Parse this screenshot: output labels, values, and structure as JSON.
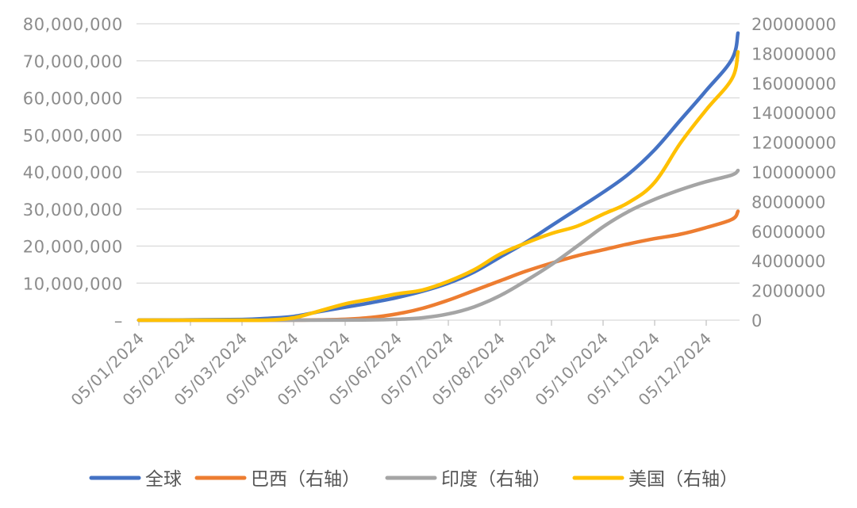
{
  "chart_data": {
    "type": "line",
    "title": "",
    "x": [
      "05/01/2024",
      "05/02/2024",
      "05/03/2024",
      "05/04/2024",
      "05/05/2024",
      "05/06/2024",
      "05/07/2024",
      "05/08/2024",
      "05/09/2024",
      "05/10/2024",
      "05/11/2024",
      "05/12/2024"
    ],
    "x_ticks": [
      "05/01/2024",
      "05/02/2024",
      "05/03/2024",
      "05/04/2024",
      "05/05/2024",
      "05/06/2024",
      "05/07/2024",
      "05/08/2024",
      "05/09/2024",
      "05/10/2024",
      "05/11/2024",
      "05/12/2024"
    ],
    "y_left": {
      "label": "",
      "lim": [
        0,
        80000000
      ],
      "ticks": [
        0,
        10000000,
        20000000,
        30000000,
        40000000,
        50000000,
        60000000,
        70000000,
        80000000
      ],
      "tick_labels": [
        "–",
        "10,000,000",
        "20,000,000",
        "30,000,000",
        "40,000,000",
        "50,000,000",
        "60,000,000",
        "70,000,000",
        "80,000,000"
      ]
    },
    "y_right": {
      "label": "",
      "lim": [
        0,
        20000000
      ],
      "ticks": [
        0,
        2000000,
        4000000,
        6000000,
        8000000,
        10000000,
        12000000,
        14000000,
        16000000,
        18000000,
        20000000
      ],
      "tick_labels": [
        "0",
        "2000000",
        "4000000",
        "6000000",
        "8000000",
        "10000000",
        "12000000",
        "14000000",
        "16000000",
        "18000000",
        "20000000"
      ]
    },
    "grid": true,
    "legend_position": "bottom",
    "series": [
      {
        "name": "全球",
        "axis": "left",
        "color": "#4472C4",
        "points": [
          [
            "05/01/2024",
            0
          ],
          [
            "05/01/2024+0.5",
            30000
          ],
          [
            "05/02/2024",
            80000
          ],
          [
            "05/03/2024",
            200000
          ],
          [
            "05/03/2024+0.5",
            500000
          ],
          [
            "05/04/2024",
            1000000
          ],
          [
            "05/04/2024+0.5",
            2300000
          ],
          [
            "05/05/2024",
            3500000
          ],
          [
            "05/05/2024+0.5",
            4700000
          ],
          [
            "05/06/2024",
            6100000
          ],
          [
            "05/06/2024+0.5",
            7800000
          ],
          [
            "05/07/2024",
            10000000
          ],
          [
            "05/07/2024+0.5",
            13000000
          ],
          [
            "05/08/2024",
            17000000
          ],
          [
            "05/08/2024+0.5",
            21000000
          ],
          [
            "05/09/2024",
            25500000
          ],
          [
            "05/09/2024+0.5",
            30000000
          ],
          [
            "05/10/2024",
            34500000
          ],
          [
            "05/10/2024+0.5",
            39500000
          ],
          [
            "05/11/2024",
            46000000
          ],
          [
            "05/11/2024+0.5",
            54000000
          ],
          [
            "05/12/2024",
            62000000
          ],
          [
            "05/12/2024+0.5",
            70500000
          ],
          [
            "end",
            77500000
          ]
        ]
      },
      {
        "name": "巴西（右轴）",
        "axis": "right",
        "color": "#ED7D31",
        "points": [
          [
            "05/01/2024",
            0
          ],
          [
            "05/03/2024",
            0
          ],
          [
            "05/04/2024",
            5000
          ],
          [
            "05/04/2024+0.5",
            20000
          ],
          [
            "05/05/2024",
            60000
          ],
          [
            "05/05/2024+0.5",
            180000
          ],
          [
            "05/06/2024",
            420000
          ],
          [
            "05/06/2024+0.5",
            800000
          ],
          [
            "05/07/2024",
            1350000
          ],
          [
            "05/07/2024+0.5",
            2000000
          ],
          [
            "05/08/2024",
            2650000
          ],
          [
            "05/08/2024+0.5",
            3300000
          ],
          [
            "05/09/2024",
            3850000
          ],
          [
            "05/09/2024+0.5",
            4350000
          ],
          [
            "05/10/2024",
            4750000
          ],
          [
            "05/10/2024+0.5",
            5150000
          ],
          [
            "05/11/2024",
            5500000
          ],
          [
            "05/11/2024+0.5",
            5800000
          ],
          [
            "05/12/2024",
            6250000
          ],
          [
            "05/12/2024+0.5",
            6800000
          ],
          [
            "end",
            7350000
          ]
        ]
      },
      {
        "name": "印度（右轴）",
        "axis": "right",
        "color": "#A5A5A5",
        "points": [
          [
            "05/01/2024",
            0
          ],
          [
            "05/04/2024",
            2000
          ],
          [
            "05/05/2024",
            8000
          ],
          [
            "05/05/2024+0.5",
            20000
          ],
          [
            "05/06/2024",
            60000
          ],
          [
            "05/06/2024+0.5",
            160000
          ],
          [
            "05/07/2024",
            420000
          ],
          [
            "05/07/2024+0.5",
            900000
          ],
          [
            "05/08/2024",
            1650000
          ],
          [
            "05/08/2024+0.5",
            2650000
          ],
          [
            "05/09/2024",
            3750000
          ],
          [
            "05/09/2024+0.5",
            5000000
          ],
          [
            "05/10/2024",
            6300000
          ],
          [
            "05/10/2024+0.5",
            7350000
          ],
          [
            "05/11/2024",
            8150000
          ],
          [
            "05/11/2024+0.5",
            8800000
          ],
          [
            "05/12/2024",
            9350000
          ],
          [
            "05/12/2024+0.5",
            9800000
          ],
          [
            "end",
            10100000
          ]
        ]
      },
      {
        "name": "美国（右轴）",
        "axis": "right",
        "color": "#FFC000",
        "points": [
          [
            "05/01/2024",
            0
          ],
          [
            "05/02/2024",
            20
          ],
          [
            "05/03/2024",
            100
          ],
          [
            "05/03/2024+0.5",
            6000
          ],
          [
            "05/04/2024",
            160000
          ],
          [
            "05/04/2024+0.5",
            620000
          ],
          [
            "05/05/2024",
            1100000
          ],
          [
            "05/05/2024+0.5",
            1430000
          ],
          [
            "05/06/2024",
            1770000
          ],
          [
            "05/06/2024+0.5",
            2040000
          ],
          [
            "05/07/2024",
            2620000
          ],
          [
            "05/07/2024+0.5",
            3400000
          ],
          [
            "05/08/2024",
            4450000
          ],
          [
            "05/08/2024+0.5",
            5200000
          ],
          [
            "05/09/2024",
            5850000
          ],
          [
            "05/09/2024+0.5",
            6350000
          ],
          [
            "05/10/2024",
            7150000
          ],
          [
            "05/10/2024+0.5",
            7950000
          ],
          [
            "05/11/2024",
            9300000
          ],
          [
            "05/11/2024+0.5",
            11950000
          ],
          [
            "05/12/2024",
            14200000
          ],
          [
            "05/12/2024+0.5",
            16300000
          ],
          [
            "end",
            18100000
          ]
        ]
      }
    ]
  }
}
